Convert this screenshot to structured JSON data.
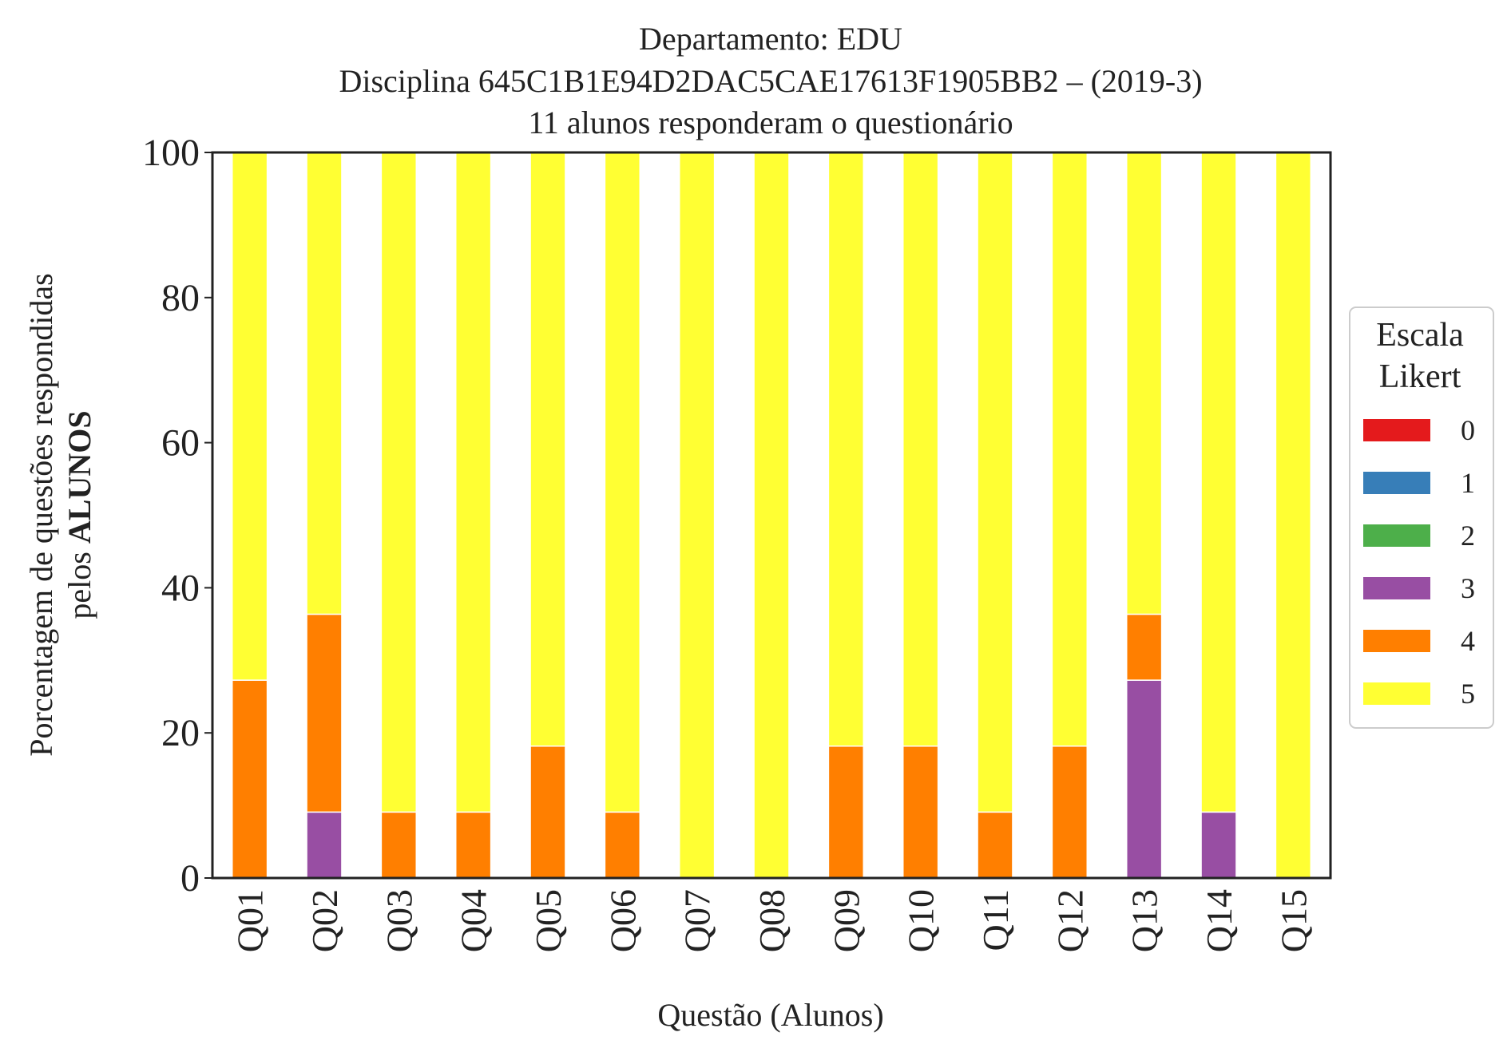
{
  "chart_data": {
    "type": "bar",
    "stacked": true,
    "title": [
      "Departamento: EDU",
      "Disciplina 645C1B1E94D2DAC5CAE17613F1905BB2 – (2019-3)",
      "11 alunos responderam o questionário"
    ],
    "xlabel": "Questão (Alunos)",
    "ylabel_line1": "Porcentagem de questões respondidas",
    "ylabel_line2_prefix": "pelos ",
    "ylabel_line2_bold": "ALUNOS",
    "ylim": [
      0,
      100
    ],
    "yticks": [
      "0",
      "20",
      "40",
      "60",
      "80",
      "100"
    ],
    "categories": [
      "Q01",
      "Q02",
      "Q03",
      "Q04",
      "Q05",
      "Q06",
      "Q07",
      "Q08",
      "Q09",
      "Q10",
      "Q11",
      "Q12",
      "Q13",
      "Q14",
      "Q15"
    ],
    "legend": {
      "title_line1": "Escala",
      "title_line2": "Likert",
      "placement": "right"
    },
    "series": [
      {
        "name": "0",
        "color": "#e41a1c",
        "values": [
          0,
          0,
          0,
          0,
          0,
          0,
          0,
          0,
          0,
          0,
          0,
          0,
          0,
          0,
          0
        ]
      },
      {
        "name": "1",
        "color": "#377eb8",
        "values": [
          0,
          0,
          0,
          0,
          0,
          0,
          0,
          0,
          0,
          0,
          0,
          0,
          0,
          0,
          0
        ]
      },
      {
        "name": "2",
        "color": "#4daf4a",
        "values": [
          0,
          0,
          0,
          0,
          0,
          0,
          0,
          0,
          0,
          0,
          0,
          0,
          0,
          0,
          0
        ]
      },
      {
        "name": "3",
        "color": "#984ea3",
        "values": [
          0,
          9.09,
          0,
          0,
          0,
          0,
          0,
          0,
          0,
          0,
          0,
          0,
          27.27,
          9.09,
          0
        ]
      },
      {
        "name": "4",
        "color": "#ff7f00",
        "values": [
          27.27,
          27.27,
          9.09,
          9.09,
          18.18,
          9.09,
          0,
          0,
          18.18,
          18.18,
          9.09,
          18.18,
          9.09,
          0,
          0
        ]
      },
      {
        "name": "5",
        "color": "#ffff33",
        "values": [
          72.73,
          63.64,
          90.91,
          90.91,
          81.82,
          90.91,
          100,
          100,
          81.82,
          81.82,
          90.91,
          81.82,
          63.64,
          90.91,
          100
        ]
      }
    ]
  }
}
